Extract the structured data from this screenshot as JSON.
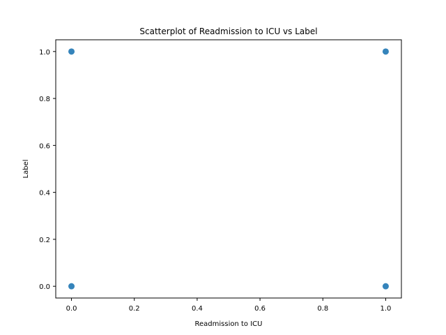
{
  "chart_data": {
    "type": "scatter",
    "title": "Scatterplot of Readmission to ICU vs Label",
    "xlabel": "Readmission to ICU",
    "ylabel": "Label",
    "xlim": [
      -0.05,
      1.05
    ],
    "ylim": [
      -0.05,
      1.05
    ],
    "xticks": [
      "0.0",
      "0.2",
      "0.4",
      "0.6",
      "0.8",
      "1.0"
    ],
    "yticks": [
      "0.0",
      "0.2",
      "0.4",
      "0.6",
      "0.8",
      "1.0"
    ],
    "grid": false,
    "marker_color": "#1f77b4",
    "points": [
      {
        "x": 0.0,
        "y": 1.0
      },
      {
        "x": 1.0,
        "y": 1.0
      },
      {
        "x": 0.0,
        "y": 0.0
      },
      {
        "x": 1.0,
        "y": 0.0
      }
    ]
  }
}
